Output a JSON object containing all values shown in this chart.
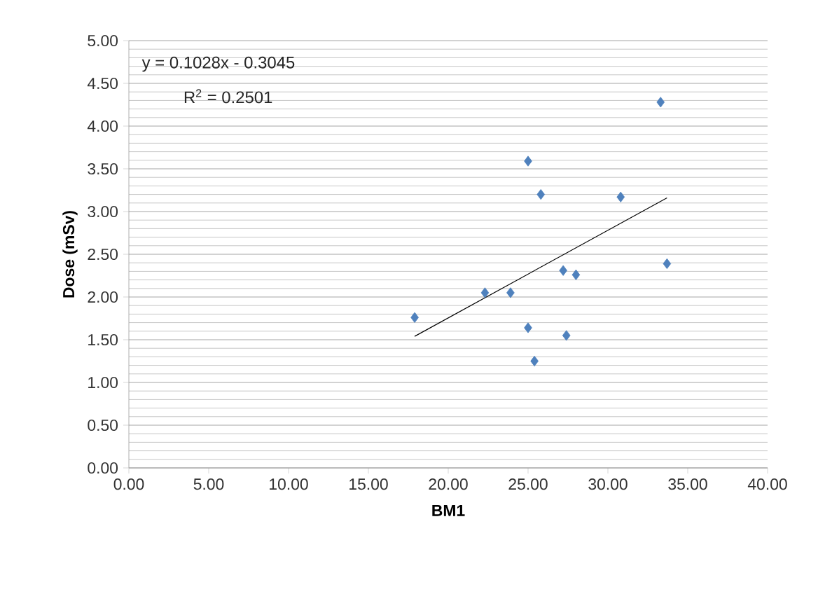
{
  "chart_data": {
    "type": "scatter",
    "xlabel": "BM1",
    "ylabel": "Dose (mSv)",
    "annotations": [
      "y = 0.1028x - 0.3045",
      "R$^{2}$ = 0.2501"
    ],
    "xlim": [
      0,
      40
    ],
    "ylim": [
      0,
      5
    ],
    "xticks": [
      {
        "value": 0,
        "label": "0.00"
      },
      {
        "value": 5,
        "label": "5.00"
      },
      {
        "value": 10,
        "label": "10.00"
      },
      {
        "value": 15,
        "label": "15.00"
      },
      {
        "value": 20,
        "label": "20.00"
      },
      {
        "value": 25,
        "label": "25.00"
      },
      {
        "value": 30,
        "label": "30.00"
      },
      {
        "value": 35,
        "label": "35.00"
      },
      {
        "value": 40,
        "label": "40.00"
      }
    ],
    "yticks": [
      {
        "value": 0,
        "label": "0.00"
      },
      {
        "value": 0.5,
        "label": "0.50"
      },
      {
        "value": 1,
        "label": "1.00"
      },
      {
        "value": 1.5,
        "label": "1.50"
      },
      {
        "value": 2,
        "label": "2.00"
      },
      {
        "value": 2.5,
        "label": "2.50"
      },
      {
        "value": 3,
        "label": "3.00"
      },
      {
        "value": 3.5,
        "label": "3.50"
      },
      {
        "value": 4,
        "label": "4.00"
      },
      {
        "value": 4.5,
        "label": "4.50"
      },
      {
        "value": 5,
        "label": "5.00"
      }
    ],
    "grid": "y",
    "series": [
      {
        "marker": "diamond",
        "color": "#4f81bd",
        "x": [
          17.9,
          22.3,
          23.9,
          25.0,
          25.8,
          25.0,
          25.4,
          27.2,
          28.0,
          27.4,
          30.8,
          33.3,
          33.7
        ],
        "values": [
          1.76,
          2.05,
          2.05,
          3.59,
          3.2,
          1.64,
          1.25,
          2.31,
          2.26,
          1.55,
          3.17,
          4.28,
          2.39
        ]
      },
      {
        "type": "line",
        "marker": "none",
        "color": "#000000",
        "x": [
          17.9,
          33.7
        ],
        "values": [
          1.54,
          3.16
        ]
      }
    ]
  }
}
